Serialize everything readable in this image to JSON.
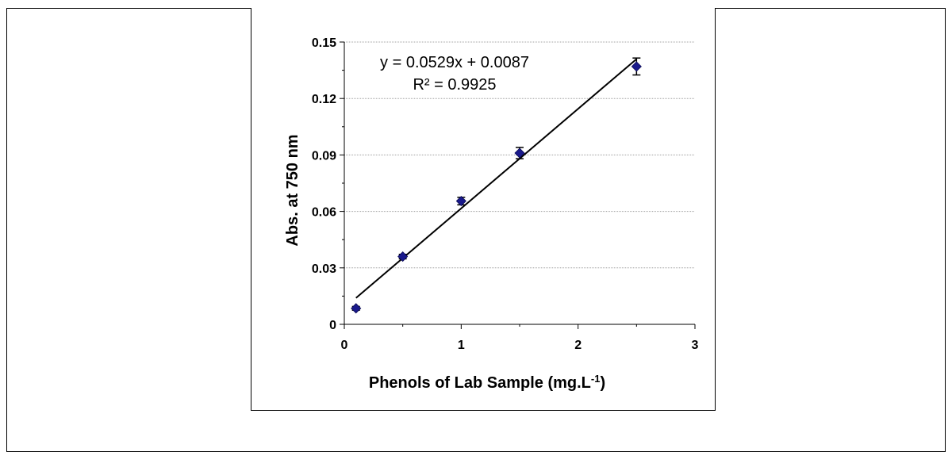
{
  "chart_data": {
    "type": "scatter",
    "title": "",
    "xlabel": "Phenols of Lab Sample (mg.L",
    "xlabel_superscript": "-1",
    "xlabel_suffix": ")",
    "ylabel": "Abs. at 750 nm",
    "xlim": [
      0,
      3
    ],
    "ylim": [
      0,
      0.15
    ],
    "x_ticks": [
      0,
      1,
      2,
      3
    ],
    "y_ticks": [
      0,
      0.03,
      0.06,
      0.09,
      0.12,
      0.15
    ],
    "x_tick_labels": [
      "0",
      "1",
      "2",
      "3"
    ],
    "y_tick_labels": [
      "0",
      "0.03",
      "0.06",
      "0.09",
      "0.12",
      "0.15"
    ],
    "grid": "horizontal",
    "legend": "none",
    "series": [
      {
        "x": [
          0.1,
          0.5,
          1.0,
          1.5,
          2.5
        ],
        "y": [
          0.0085,
          0.036,
          0.0655,
          0.091,
          0.137
        ],
        "error": [
          0.001,
          0.0012,
          0.002,
          0.003,
          0.0045
        ],
        "marker": "diamond",
        "color": "#1a1a8c"
      }
    ],
    "trendline": {
      "slope": 0.0529,
      "intercept": 0.0087,
      "x_range": [
        0.1,
        2.5
      ],
      "color": "#000000",
      "equation": "y = 0.0529x + 0.0087",
      "r_squared": "R² = 0.9925"
    }
  }
}
